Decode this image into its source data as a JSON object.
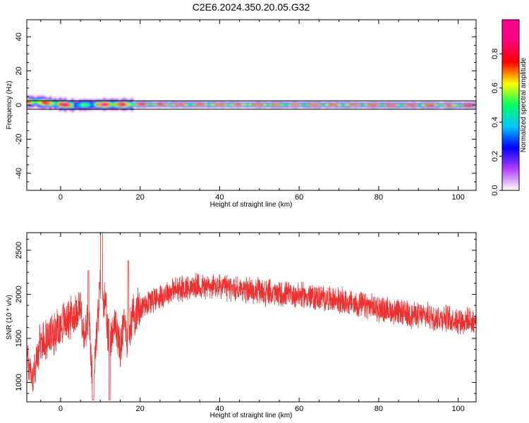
{
  "title": "C2E6.2024.350.20.05.G32",
  "chart_data": [
    {
      "type": "heatmap",
      "xlabel": "Height of straight line (km)",
      "ylabel": "Frequency (Hz)",
      "xlim": [
        -8.5,
        104.5
      ],
      "ylim": [
        -50,
        50
      ],
      "xticks": [
        0,
        20,
        40,
        60,
        80,
        100
      ],
      "yticks": [
        -40,
        -20,
        0,
        20,
        40
      ],
      "colorbar": {
        "label": "Normalized spectral amplitude",
        "range": [
          0,
          1
        ],
        "ticks": [
          0.0,
          0.2,
          0.4,
          0.6,
          0.8
        ],
        "colormap": [
          "#ffffff",
          "#b040ff",
          "#0000ff",
          "#00c8ff",
          "#00ff60",
          "#ffff00",
          "#ff0000",
          "#ff0080",
          "#ff0090"
        ]
      },
      "ridge": {
        "frequency_hz": [
          2,
          0,
          0.5,
          0
        ],
        "x_km": [
          -6,
          2,
          10,
          104
        ],
        "peak_amplitude": 1.0
      },
      "band_limits_hz": [
        -2.5,
        2.5
      ]
    },
    {
      "type": "line",
      "xlabel": "Height of straight line (km)",
      "ylabel": "SNR (10 * v/v)",
      "xlim": [
        -8.5,
        104.5
      ],
      "ylim": [
        780,
        2700
      ],
      "xticks": [
        0,
        20,
        40,
        60,
        80,
        100
      ],
      "yticks": [
        1000,
        1500,
        2000,
        2500
      ],
      "color": "#ee3030",
      "trend": {
        "x": [
          -8.5,
          -7,
          -5,
          -3,
          -1,
          1,
          3,
          5,
          6,
          7,
          8,
          9,
          10,
          11,
          12,
          13,
          14,
          15,
          16,
          17,
          18,
          20,
          22,
          25,
          28,
          32,
          36,
          40,
          45,
          50,
          55,
          60,
          65,
          70,
          75,
          80,
          85,
          90,
          95,
          100,
          104.5
        ],
        "y": [
          1300,
          1050,
          1450,
          1500,
          1600,
          1700,
          1750,
          1850,
          1450,
          1750,
          1000,
          1500,
          2100,
          1950,
          1500,
          1600,
          1650,
          1350,
          1700,
          1450,
          1750,
          1850,
          1920,
          1980,
          2040,
          2080,
          2090,
          2080,
          2060,
          2030,
          2000,
          1990,
          1960,
          1930,
          1880,
          1840,
          1790,
          1760,
          1740,
          1710,
          1690
        ]
      },
      "noise_amplitude": 130
    }
  ]
}
